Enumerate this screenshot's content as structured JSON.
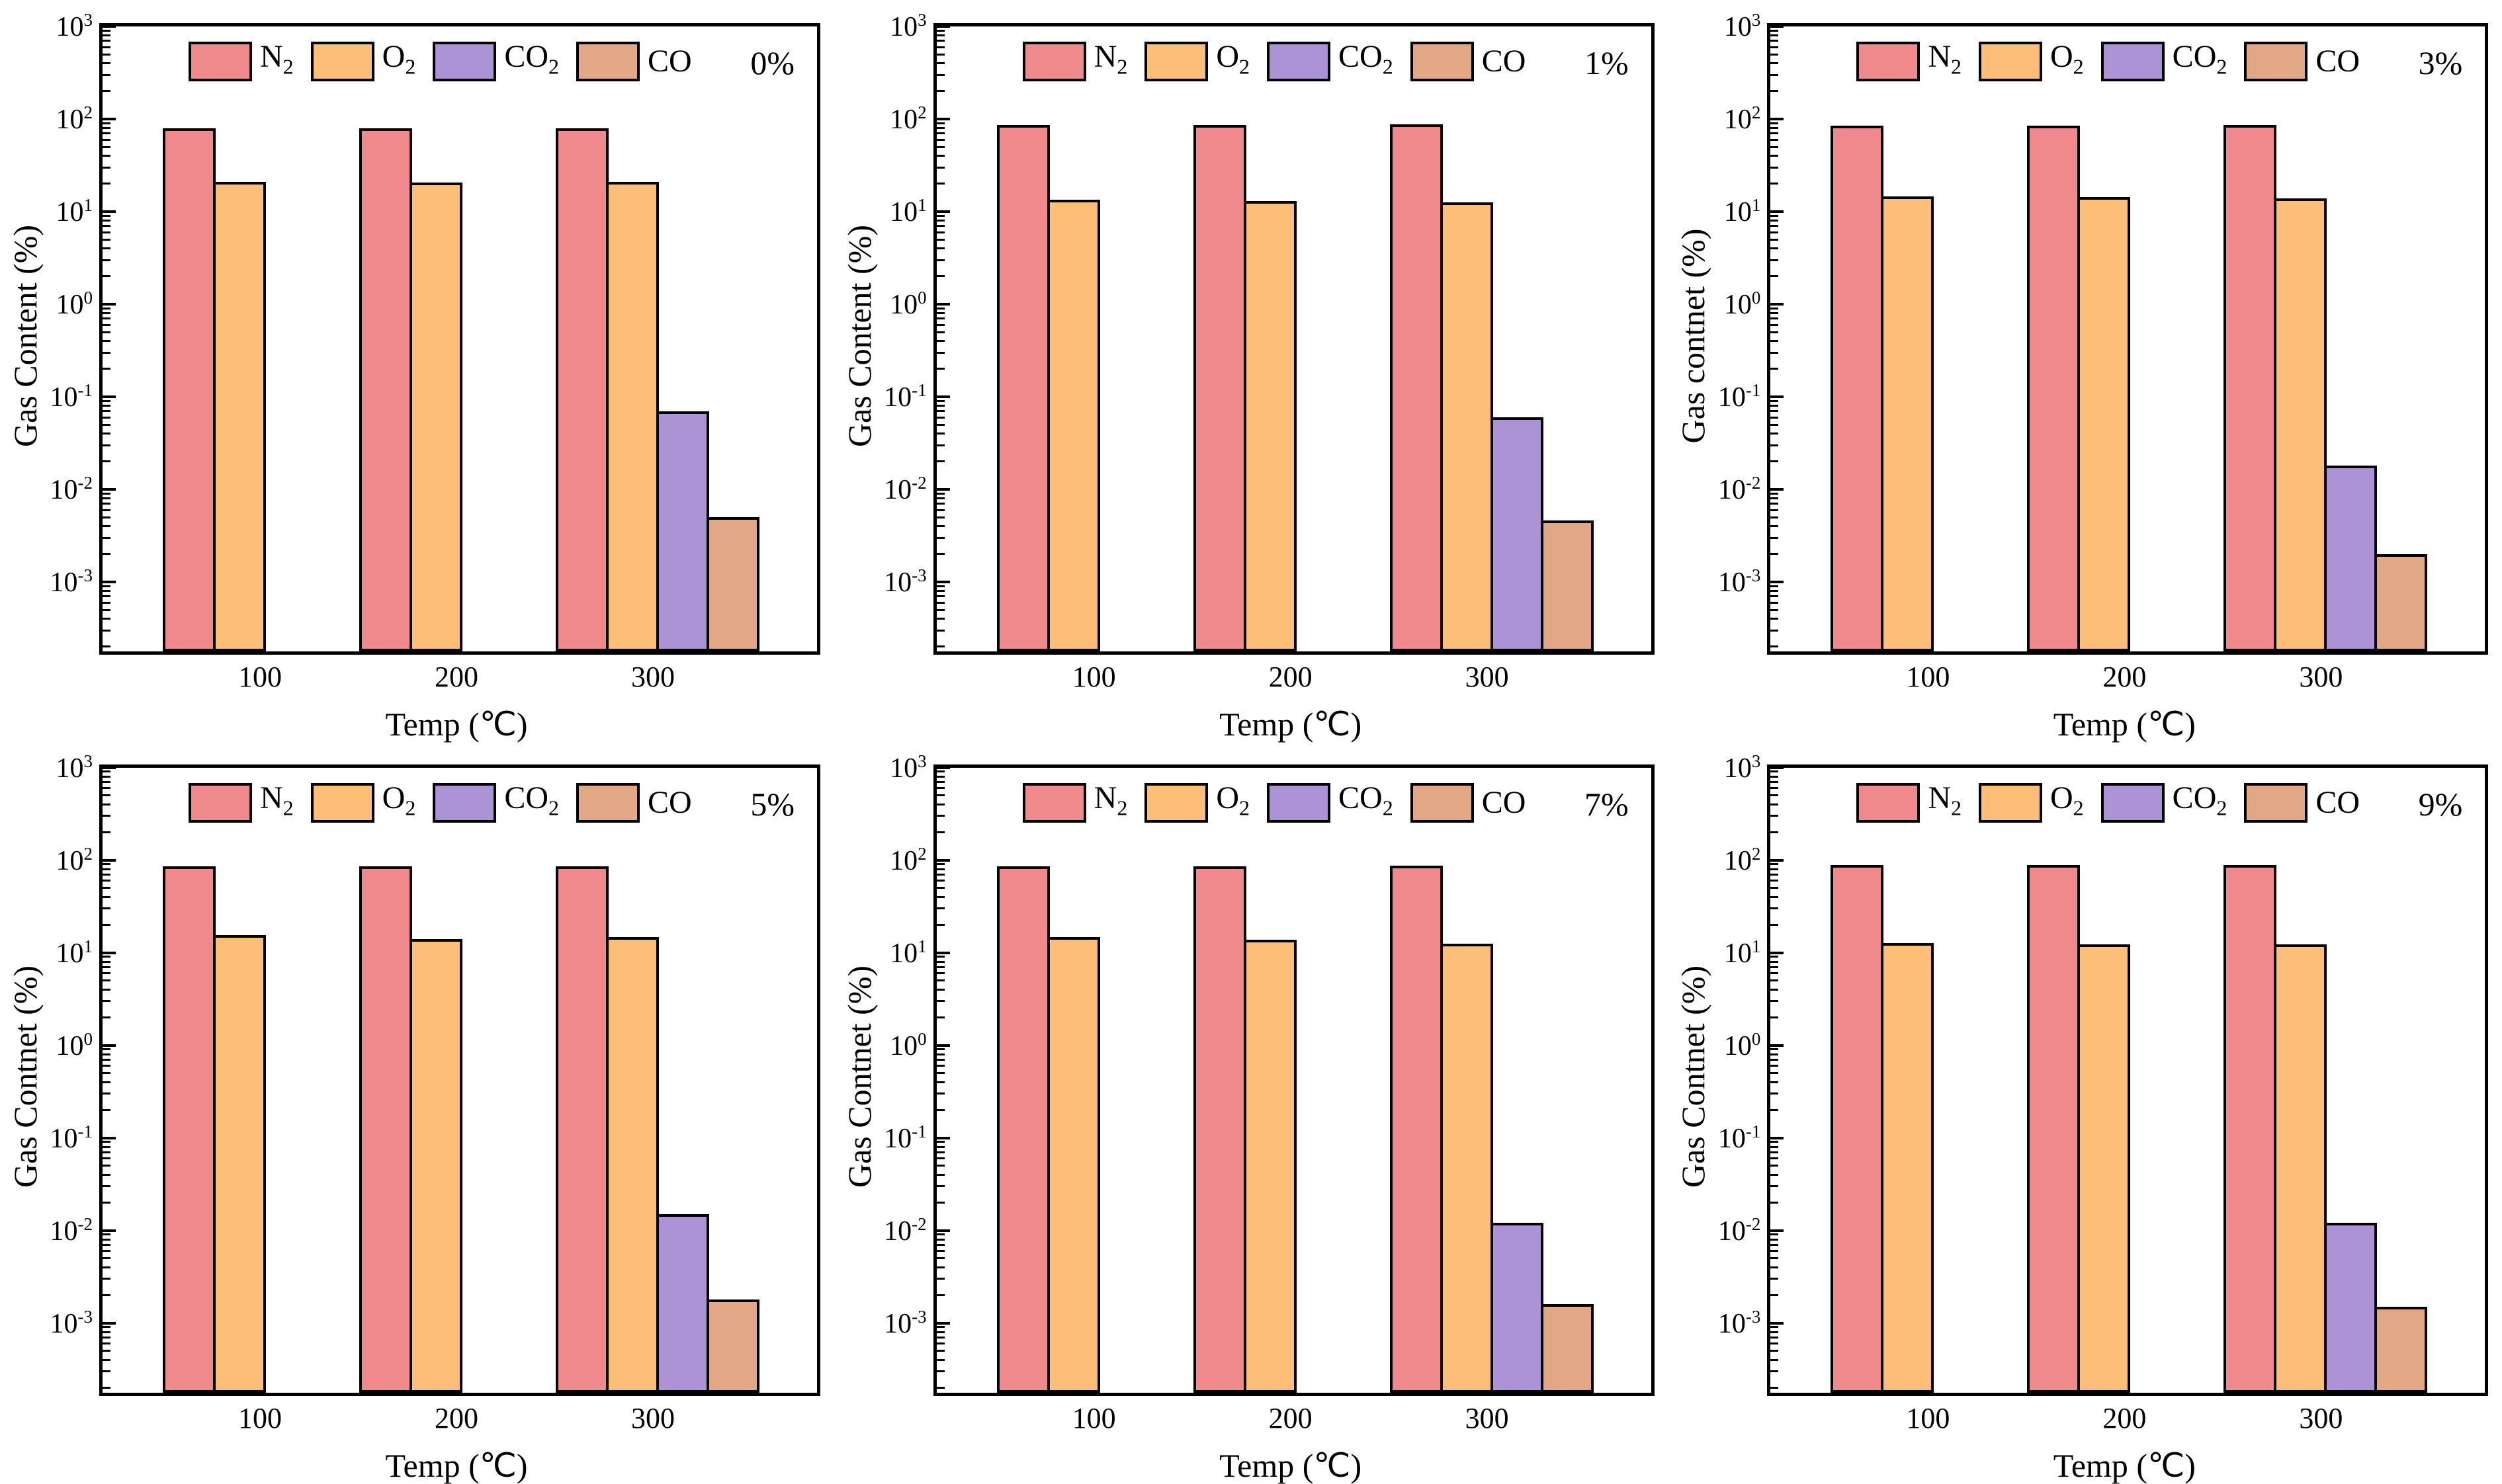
{
  "figure": {
    "xlabel": "Temp (℃)",
    "x_categories": [
      "100",
      "200",
      "300"
    ],
    "y_major_exponents": [
      3,
      2,
      1,
      0,
      -1,
      -2,
      -3
    ],
    "ylim_exponents": [
      -3.75,
      3
    ],
    "background_color": "#ffffff",
    "axis_color": "#000000",
    "legend": [
      {
        "name": "N2",
        "main": "N",
        "sub": "2",
        "color": "#F0898C"
      },
      {
        "name": "O2",
        "main": "O",
        "sub": "2",
        "color": "#FDBE78"
      },
      {
        "name": "CO2",
        "main": "CO",
        "sub": "2",
        "color": "#AC93D5"
      },
      {
        "name": "CO",
        "main": "CO",
        "sub": "",
        "color": "#E2A885"
      }
    ]
  },
  "chart_data": [
    {
      "type": "bar",
      "log_y": true,
      "panel_label": "0%",
      "ylabel": "Gas Content (%)",
      "xlabel": "Temp (℃)",
      "categories": [
        "100",
        "200",
        "300"
      ],
      "ylim": [
        0.000178,
        1000
      ],
      "series": [
        {
          "name": "N2",
          "values": [
            80,
            80,
            79
          ]
        },
        {
          "name": "O2",
          "values": [
            21,
            20.5,
            21
          ]
        },
        {
          "name": "CO2",
          "values": [
            null,
            null,
            0.07
          ]
        },
        {
          "name": "CO",
          "values": [
            null,
            null,
            0.005
          ]
        }
      ]
    },
    {
      "type": "bar",
      "log_y": true,
      "panel_label": "1%",
      "ylabel": "Gas Content (%)",
      "xlabel": "Temp (℃)",
      "categories": [
        "100",
        "200",
        "300"
      ],
      "ylim": [
        0.000178,
        1000
      ],
      "series": [
        {
          "name": "N2",
          "values": [
            86,
            86,
            87
          ]
        },
        {
          "name": "O2",
          "values": [
            13.5,
            13,
            12.5
          ]
        },
        {
          "name": "CO2",
          "values": [
            null,
            null,
            0.06
          ]
        },
        {
          "name": "CO",
          "values": [
            null,
            null,
            0.0046
          ]
        }
      ]
    },
    {
      "type": "bar",
      "log_y": true,
      "panel_label": "3%",
      "ylabel": "Gas contnet (%)",
      "xlabel": "Temp (℃)",
      "categories": [
        "100",
        "200",
        "300"
      ],
      "ylim": [
        0.000178,
        1000
      ],
      "series": [
        {
          "name": "N2",
          "values": [
            85,
            85,
            86
          ]
        },
        {
          "name": "O2",
          "values": [
            14.5,
            14.3,
            13.8
          ]
        },
        {
          "name": "CO2",
          "values": [
            null,
            null,
            0.018
          ]
        },
        {
          "name": "CO",
          "values": [
            null,
            null,
            0.002
          ]
        }
      ]
    },
    {
      "type": "bar",
      "log_y": true,
      "panel_label": "5%",
      "ylabel": "Gas Contnet (%)",
      "xlabel": "Temp (℃)",
      "categories": [
        "100",
        "200",
        "300"
      ],
      "ylim": [
        0.000178,
        1000
      ],
      "series": [
        {
          "name": "N2",
          "values": [
            85,
            86,
            85
          ]
        },
        {
          "name": "O2",
          "values": [
            15.5,
            14,
            14.8
          ]
        },
        {
          "name": "CO2",
          "values": [
            null,
            null,
            0.015
          ]
        },
        {
          "name": "CO",
          "values": [
            null,
            null,
            0.0018
          ]
        }
      ]
    },
    {
      "type": "bar",
      "log_y": true,
      "panel_label": "7%",
      "ylabel": "Gas Contnet (%)",
      "xlabel": "Temp (℃)",
      "categories": [
        "100",
        "200",
        "300"
      ],
      "ylim": [
        0.000178,
        1000
      ],
      "series": [
        {
          "name": "N2",
          "values": [
            85,
            86,
            87
          ]
        },
        {
          "name": "O2",
          "values": [
            14.8,
            13.7,
            12.4
          ]
        },
        {
          "name": "CO2",
          "values": [
            null,
            null,
            0.012
          ]
        },
        {
          "name": "CO",
          "values": [
            null,
            null,
            0.0016
          ]
        }
      ]
    },
    {
      "type": "bar",
      "log_y": true,
      "panel_label": "9%",
      "ylabel": "Gas Contnet (%)",
      "xlabel": "Temp (℃)",
      "categories": [
        "100",
        "200",
        "300"
      ],
      "ylim": [
        0.000178,
        1000
      ],
      "series": [
        {
          "name": "N2",
          "values": [
            88,
            88,
            88
          ]
        },
        {
          "name": "O2",
          "values": [
            12.6,
            12.2,
            12.3
          ]
        },
        {
          "name": "CO2",
          "values": [
            null,
            null,
            0.012
          ]
        },
        {
          "name": "CO",
          "values": [
            null,
            null,
            0.0015
          ]
        }
      ]
    }
  ]
}
